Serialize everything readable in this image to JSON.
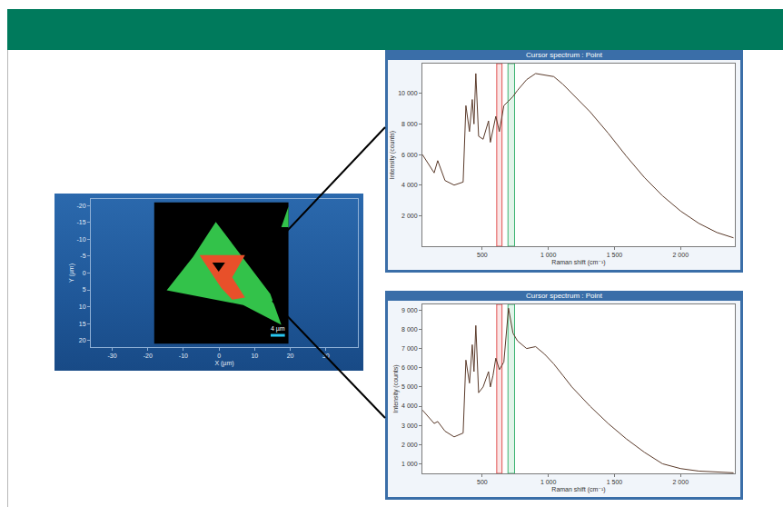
{
  "chart_data": [
    {
      "type": "map",
      "x_label": "X (µm)",
      "y_label": "Y (µm)",
      "xlim": [
        -36,
        39
      ],
      "ylim": [
        22,
        -22
      ],
      "xticks": [
        -30,
        -20,
        -10,
        0,
        10,
        20,
        30
      ],
      "yticks": [
        -20,
        -15,
        -10,
        -5,
        0,
        5,
        10,
        15,
        20
      ],
      "grid": false,
      "regions": [
        {
          "color": "#000000",
          "x": [
            -18.2,
            19.5,
            19.5,
            -18.2
          ],
          "y": [
            -21,
            -21,
            21,
            21
          ]
        },
        {
          "color": "#33c24a",
          "x": [
            -0.9,
            14.4,
            17.5,
            6.8,
            -14.7,
            -7.3
          ],
          "y": [
            -15.2,
            6.2,
            15.4,
            9.5,
            5.1,
            -4.8
          ]
        },
        {
          "color": "#e8502a",
          "x": [
            -5.5,
            7.3,
            3.7,
            7.3,
            3.7,
            0.6
          ],
          "y": [
            -5.3,
            -5.3,
            1.3,
            7.3,
            7.9,
            4.4
          ]
        },
        {
          "color": "#000000",
          "x": [
            -1.9,
            1.7,
            -0.1
          ],
          "y": [
            -3.1,
            -3.1,
            -0.4
          ]
        },
        {
          "color": "#33c24a",
          "x": [
            17.5,
            19.5,
            19.5
          ],
          "y": [
            -13.6,
            -19.8,
            -13.6
          ]
        }
      ],
      "scale_bar": {
        "label": "4 µm",
        "length": 4,
        "color": "#29c6f0"
      }
    },
    {
      "type": "line",
      "title": "Cursor spectrum : Point",
      "x_label": "Raman shift (cm⁻¹)",
      "y_label": "Intensity (counts)",
      "xlim": [
        48,
        2410
      ],
      "ylim": [
        0,
        11950
      ],
      "xticks": [
        500,
        {
          "value": 1000,
          "label": "1 000"
        },
        {
          "value": 1500,
          "label": "1 500"
        },
        {
          "value": 2000,
          "label": "2 000"
        }
      ],
      "yticks": [
        {
          "value": 2000,
          "label": "2 000"
        },
        {
          "value": 4000,
          "label": "4 000"
        },
        {
          "value": 6000,
          "label": "6 000"
        },
        {
          "value": 8000,
          "label": "8 000"
        },
        {
          "value": 10000,
          "label": "10 000"
        }
      ],
      "grid": false,
      "color": "#5a3a2a",
      "bands": [
        {
          "range": [
            610,
            650
          ],
          "color": "#e05050"
        },
        {
          "range": [
            695,
            745
          ],
          "color": "#3cb371"
        }
      ],
      "x": [
        48,
        137,
        164,
        219,
        288,
        356,
        377,
        404,
        425,
        438,
        452,
        473,
        507,
        527,
        548,
        562,
        582,
        603,
        630,
        664,
        699,
        733,
        767,
        836,
        904,
        973,
        1041,
        1110,
        1178,
        1315,
        1452,
        1589,
        1726,
        1863,
        2000,
        2137,
        2274,
        2400
      ],
      "values": [
        6000,
        4800,
        5600,
        4300,
        4000,
        4200,
        9200,
        7500,
        9600,
        8000,
        11300,
        7200,
        7000,
        7600,
        8200,
        6800,
        7600,
        8500,
        7500,
        9200,
        9500,
        9800,
        10200,
        10900,
        11300,
        11200,
        11100,
        10600,
        10000,
        8800,
        7400,
        5900,
        4500,
        3300,
        2300,
        1500,
        900,
        550
      ]
    },
    {
      "type": "line",
      "title": "Cursor spectrum : Point",
      "x_label": "Raman shift (cm⁻¹)",
      "y_label": "Intensity (counts)",
      "xlim": [
        48,
        2410
      ],
      "ylim": [
        500,
        9300
      ],
      "xticks": [
        500,
        {
          "value": 1000,
          "label": "1 000"
        },
        {
          "value": 1500,
          "label": "1 500"
        },
        {
          "value": 2000,
          "label": "2 000"
        }
      ],
      "yticks": [
        {
          "value": 1000,
          "label": "1 000"
        },
        {
          "value": 2000,
          "label": "2 000"
        },
        {
          "value": 3000,
          "label": "3 000"
        },
        {
          "value": 4000,
          "label": "4 000"
        },
        {
          "value": 5000,
          "label": "5 000"
        },
        {
          "value": 6000,
          "label": "6 000"
        },
        {
          "value": 7000,
          "label": "7 000"
        },
        {
          "value": 8000,
          "label": "8 000"
        },
        {
          "value": 9000,
          "label": "9 000"
        }
      ],
      "grid": false,
      "color": "#5a3a2a",
      "bands": [
        {
          "range": [
            610,
            650
          ],
          "color": "#e05050"
        },
        {
          "range": [
            695,
            745
          ],
          "color": "#3cb371"
        }
      ],
      "x": [
        48,
        137,
        164,
        219,
        288,
        356,
        377,
        404,
        425,
        438,
        452,
        473,
        507,
        527,
        548,
        562,
        582,
        603,
        630,
        664,
        699,
        733,
        767,
        836,
        904,
        973,
        1041,
        1110,
        1178,
        1315,
        1452,
        1589,
        1726,
        1863,
        2000,
        2137,
        2274,
        2400
      ],
      "values": [
        3800,
        3100,
        3200,
        2700,
        2400,
        2600,
        6400,
        5200,
        7200,
        5800,
        8200,
        4700,
        5000,
        5400,
        5800,
        5000,
        5600,
        6500,
        5900,
        6300,
        9100,
        7800,
        7400,
        7000,
        7100,
        6700,
        6200,
        5600,
        5000,
        4000,
        3100,
        2300,
        1600,
        1000,
        750,
        620,
        560,
        530
      ]
    }
  ]
}
